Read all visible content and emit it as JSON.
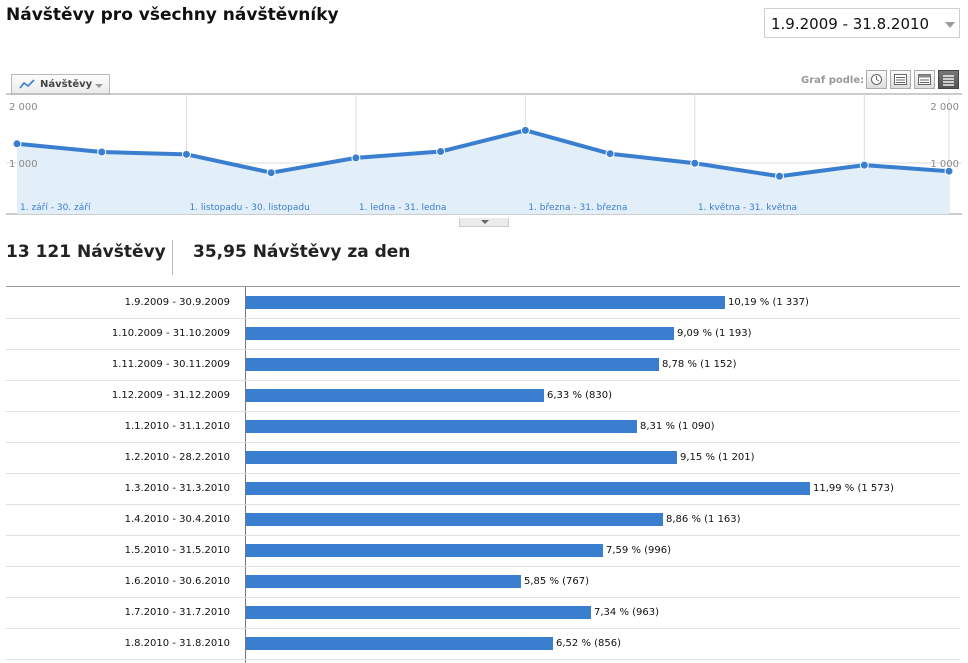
{
  "page": {
    "title": "Návštěvy pro všechny návštěvníky",
    "date_range": "1.9.2009 - 31.8.2010"
  },
  "graph_controls": {
    "metric_tab_label": "Návštěvy",
    "graph_by_label": "Graf podle:",
    "view_buttons": [
      "clock-icon",
      "list-icon",
      "table-icon",
      "detail-list-icon"
    ]
  },
  "chart_data": {
    "type": "line",
    "title": "Návštěvy",
    "yticks_left": [
      "2 000",
      "1 000"
    ],
    "yticks_right": [
      "2 000",
      "1 000"
    ],
    "ylim": [
      0,
      2000
    ],
    "x_labels": [
      "1. září - 30. září",
      "1. listopadu - 30. listopadu",
      "1. ledna - 31. ledna",
      "1. března - 31. března",
      "1. května - 31. května"
    ],
    "series": [
      {
        "name": "Návštěvy",
        "values": [
          1337,
          1193,
          1152,
          830,
          1090,
          1201,
          1573,
          1163,
          996,
          767,
          963,
          856
        ]
      }
    ],
    "color": "#3a7fcf"
  },
  "summary": {
    "total": "13 121 Návštěvy",
    "per_day": "35,95 Návštěvy za den"
  },
  "table": {
    "rows": [
      {
        "period": "1.9.2009 - 30.9.2009",
        "share": "10,19 % (1 337)",
        "value": 1337
      },
      {
        "period": "1.10.2009 - 31.10.2009",
        "share": "9,09 % (1 193)",
        "value": 1193
      },
      {
        "period": "1.11.2009 - 30.11.2009",
        "share": "8,78 % (1 152)",
        "value": 1152
      },
      {
        "period": "1.12.2009 - 31.12.2009",
        "share": "6,33 % (830)",
        "value": 830
      },
      {
        "period": "1.1.2010 - 31.1.2010",
        "share": "8,31 % (1 090)",
        "value": 1090
      },
      {
        "period": "1.2.2010 - 28.2.2010",
        "share": "9,15 % (1 201)",
        "value": 1201
      },
      {
        "period": "1.3.2010 - 31.3.2010",
        "share": "11,99 % (1 573)",
        "value": 1573
      },
      {
        "period": "1.4.2010 - 30.4.2010",
        "share": "8,86 % (1 163)",
        "value": 1163
      },
      {
        "period": "1.5.2010 - 31.5.2010",
        "share": "7,59 % (996)",
        "value": 996
      },
      {
        "period": "1.6.2010 - 30.6.2010",
        "share": "5,85 % (767)",
        "value": 767
      },
      {
        "period": "1.7.2010 - 31.7.2010",
        "share": "7,34 % (963)",
        "value": 963
      },
      {
        "period": "1.8.2010 - 31.8.2010",
        "share": "6,52 % (856)",
        "value": 856
      }
    ]
  }
}
